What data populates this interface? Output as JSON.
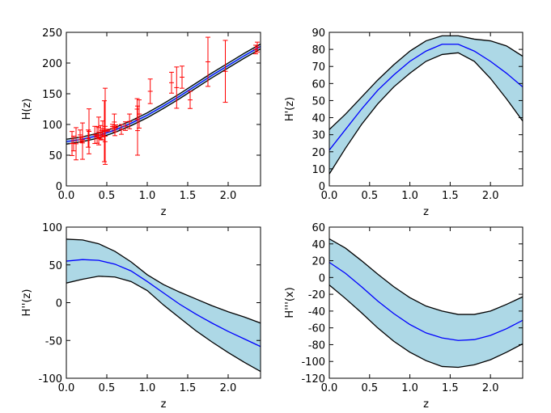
{
  "chart_data": [
    {
      "type": "line",
      "xlabel": "z",
      "ylabel": "H(z)",
      "xlim": [
        0,
        2.4
      ],
      "xticks": [
        {
          "value": 0,
          "label": "0.0"
        },
        0.5,
        {
          "value": 1,
          "label": "1.0"
        },
        1.5,
        {
          "value": 2,
          "label": "2.0"
        }
      ],
      "ylim": [
        0,
        250
      ],
      "yticks": [
        0,
        50,
        100,
        150,
        200,
        250
      ],
      "x": [
        0,
        0.2,
        0.4,
        0.6,
        0.8,
        1.0,
        1.2,
        1.4,
        1.6,
        1.8,
        2.0,
        2.2,
        2.4
      ],
      "band": {
        "lower": [
          68,
          72,
          78,
          87,
          98,
          111,
          126,
          142,
          159,
          176,
          192,
          208,
          223
        ],
        "upper": [
          76,
          80,
          86,
          95,
          106,
          119,
          134,
          150,
          167,
          184,
          200,
          216,
          231
        ],
        "fill": "#add8e6",
        "edge": "#000000"
      },
      "series": [
        {
          "color": "#0000ff",
          "values": [
            72,
            76,
            82,
            91,
            102,
            115,
            130,
            146,
            163,
            180,
            196,
            212,
            227
          ]
        }
      ],
      "points": {
        "color": "#ff0000",
        "x": [
          0.07,
          0.09,
          0.12,
          0.17,
          0.179,
          0.199,
          0.2,
          0.27,
          0.28,
          0.352,
          0.38,
          0.3802,
          0.4,
          0.4004,
          0.4247,
          0.44,
          0.4497,
          0.47,
          0.4783,
          0.48,
          0.51,
          0.57,
          0.593,
          0.6,
          0.61,
          0.68,
          0.73,
          0.781,
          0.875,
          0.88,
          0.9,
          1.037,
          1.3,
          1.363,
          1.43,
          1.53,
          1.75,
          1.965,
          2.34,
          2.36
        ],
        "y": [
          69,
          69,
          68.6,
          83,
          75,
          75,
          72.9,
          77,
          88.8,
          83,
          81.5,
          83,
          95,
          77,
          87.1,
          82.6,
          92.8,
          89,
          80.9,
          97,
          90.4,
          96.8,
          104,
          87.9,
          97.3,
          92,
          97.3,
          105,
          125,
          90,
          117,
          154,
          168,
          160,
          177,
          140,
          202,
          186.5,
          222,
          226
        ],
        "err": [
          19.6,
          12,
          26.2,
          8,
          4,
          5,
          29.6,
          14,
          36.6,
          14,
          1.9,
          13.5,
          17,
          10.2,
          11.2,
          7.8,
          12.9,
          49.6,
          9,
          62,
          1.9,
          3.4,
          13,
          6.1,
          2.1,
          8,
          7,
          12,
          17,
          40,
          23,
          20,
          17,
          33.6,
          18,
          14,
          40,
          50.4,
          7,
          8
        ]
      }
    },
    {
      "type": "line",
      "xlabel": "z",
      "ylabel": "H'(z)",
      "xlim": [
        0,
        2.4
      ],
      "xticks": [
        {
          "value": 0,
          "label": "0.0"
        },
        0.5,
        {
          "value": 1,
          "label": "1.0"
        },
        1.5,
        {
          "value": 2,
          "label": "2.0"
        }
      ],
      "ylim": [
        0,
        90
      ],
      "yticks": [
        0,
        10,
        20,
        30,
        40,
        50,
        60,
        70,
        80,
        90
      ],
      "x": [
        0,
        0.2,
        0.4,
        0.6,
        0.8,
        1.0,
        1.2,
        1.4,
        1.6,
        1.8,
        2.0,
        2.2,
        2.4
      ],
      "band": {
        "lower": [
          7,
          22,
          36,
          48,
          58,
          66,
          73,
          77,
          78,
          73,
          63,
          51,
          38
        ],
        "upper": [
          33,
          42,
          52,
          62,
          71,
          79,
          85,
          88,
          88,
          86,
          85,
          82,
          76
        ],
        "fill": "#add8e6",
        "edge": "#000000"
      },
      "series": [
        {
          "color": "#0000ff",
          "values": [
            21,
            33,
            45,
            56,
            65,
            73,
            79,
            83,
            83,
            79,
            73,
            66,
            58
          ]
        }
      ]
    },
    {
      "type": "line",
      "xlabel": "z",
      "ylabel": "H''(z)",
      "xlim": [
        0,
        2.4
      ],
      "xticks": [
        {
          "value": 0,
          "label": "0.0"
        },
        0.5,
        {
          "value": 1,
          "label": "1.0"
        },
        1.5,
        {
          "value": 2,
          "label": "2.0"
        }
      ],
      "ylim": [
        -100,
        100
      ],
      "yticks": [
        -100,
        -50,
        0,
        50,
        100
      ],
      "x": [
        0,
        0.2,
        0.4,
        0.6,
        0.8,
        1.0,
        1.2,
        1.4,
        1.6,
        1.8,
        2.0,
        2.2,
        2.4
      ],
      "band": {
        "lower": [
          26,
          31,
          35,
          34,
          28,
          16,
          -3,
          -20,
          -37,
          -52,
          -66,
          -79,
          -91
        ],
        "upper": [
          84,
          83,
          78,
          68,
          54,
          37,
          24,
          14,
          5,
          -4,
          -12,
          -19,
          -27
        ],
        "fill": "#add8e6",
        "edge": "#000000"
      },
      "series": [
        {
          "color": "#0000ff",
          "values": [
            55,
            57,
            56,
            51,
            42,
            28,
            13,
            -2,
            -15,
            -27,
            -38,
            -48,
            -58
          ]
        }
      ]
    },
    {
      "type": "line",
      "xlabel": "z",
      "ylabel": "H'''(x)",
      "xlim": [
        0,
        2.4
      ],
      "xticks": [
        {
          "value": 0,
          "label": "0.0"
        },
        0.5,
        {
          "value": 1,
          "label": "1.0"
        },
        1.5,
        {
          "value": 2,
          "label": "2.0"
        }
      ],
      "ylim": [
        -120,
        60
      ],
      "yticks": [
        -120,
        -100,
        -80,
        -60,
        -40,
        -20,
        0,
        20,
        40,
        60
      ],
      "x": [
        0,
        0.2,
        0.4,
        0.6,
        0.8,
        1.0,
        1.2,
        1.4,
        1.6,
        1.8,
        2.0,
        2.2,
        2.4
      ],
      "band": {
        "lower": [
          -9,
          -25,
          -42,
          -60,
          -76,
          -89,
          -99,
          -106,
          -107,
          -104,
          -98,
          -89,
          -79
        ],
        "upper": [
          46,
          35,
          20,
          4,
          -11,
          -24,
          -34,
          -40,
          -44,
          -44,
          -40,
          -32,
          -23
        ],
        "fill": "#add8e6",
        "edge": "#000000"
      },
      "series": [
        {
          "color": "#0000ff",
          "values": [
            18,
            5,
            -11,
            -28,
            -43,
            -56,
            -66,
            -72,
            -75,
            -74,
            -69,
            -61,
            -51
          ]
        }
      ]
    }
  ]
}
